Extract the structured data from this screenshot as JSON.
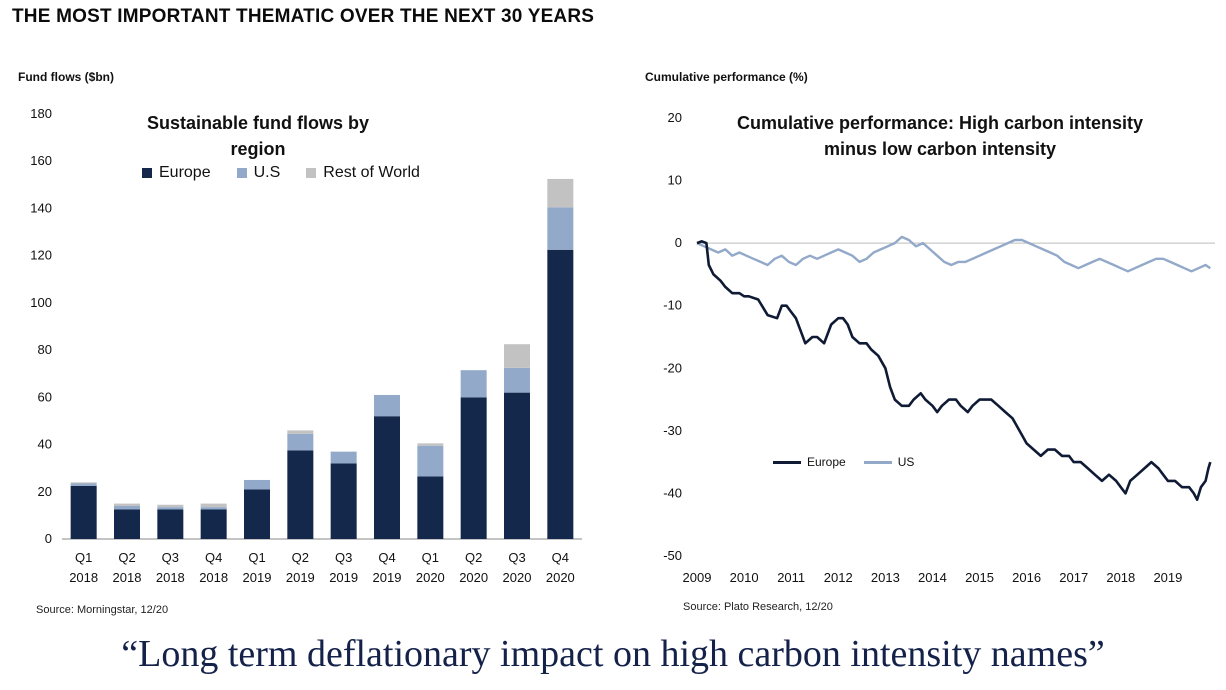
{
  "headline": "THE MOST IMPORTANT THEMATIC OVER THE NEXT 30 YEARS",
  "quote": "“Long term deflationary impact on high carbon intensity names”",
  "colors": {
    "europe": "#14284b",
    "us": "#93a9c9",
    "row": "#c2c2c2",
    "axis": "#8a8a8a"
  },
  "left": {
    "axis_caption": "Fund flows ($bn)",
    "source": "Source: Morningstar, 12/20"
  },
  "right": {
    "axis_caption": "Cumulative performance (%)",
    "source": "Source: Plato Research, 12/20"
  },
  "chart_data": [
    {
      "type": "bar",
      "stacked": true,
      "title": "Sustainable fund flows by region",
      "ylabel": "Fund flows ($bn)",
      "ylim": [
        0,
        180
      ],
      "yticks": [
        0,
        20,
        40,
        60,
        80,
        100,
        120,
        140,
        160,
        180
      ],
      "categories": [
        [
          "Q1",
          "2018"
        ],
        [
          "Q2",
          "2018"
        ],
        [
          "Q3",
          "2018"
        ],
        [
          "Q4",
          "2018"
        ],
        [
          "Q1",
          "2019"
        ],
        [
          "Q2",
          "2019"
        ],
        [
          "Q3",
          "2019"
        ],
        [
          "Q4",
          "2019"
        ],
        [
          "Q1",
          "2020"
        ],
        [
          "Q2",
          "2020"
        ],
        [
          "Q3",
          "2020"
        ],
        [
          "Q4",
          "2020"
        ]
      ],
      "legend_position": "top-left",
      "series": [
        {
          "name": "Europe",
          "values": [
            22.5,
            12.5,
            12.5,
            12.5,
            21,
            37.5,
            32,
            52,
            26.5,
            60,
            62,
            122.5
          ]
        },
        {
          "name": "U.S",
          "values": [
            1,
            1.5,
            1,
            1,
            4,
            7,
            5,
            9,
            13,
            11.5,
            10.5,
            18
          ]
        },
        {
          "name": "Rest of World",
          "values": [
            0.5,
            1,
            1,
            1.5,
            0,
            1.5,
            0,
            0,
            1,
            0,
            10,
            12
          ]
        }
      ]
    },
    {
      "type": "line",
      "title_lines": [
        "Cumulative performance: High carbon intensity",
        "minus low carbon intensity"
      ],
      "ylabel": "Cumulative performance (%)",
      "ylim": [
        -50,
        20
      ],
      "yticks": [
        20,
        10,
        0,
        -10,
        -20,
        -30,
        -40,
        -50
      ],
      "xlim": [
        2009,
        2020
      ],
      "xticks": [
        2009,
        2010,
        2011,
        2012,
        2013,
        2014,
        2015,
        2016,
        2017,
        2018,
        2019
      ],
      "legend_position": "bottom-left",
      "series": [
        {
          "name": "Europe",
          "x": [
            2009.0,
            2009.1,
            2009.2,
            2009.25,
            2009.35,
            2009.5,
            2009.6,
            2009.75,
            2009.9,
            2010.0,
            2010.1,
            2010.3,
            2010.5,
            2010.7,
            2010.8,
            2010.9,
            2011.0,
            2011.1,
            2011.2,
            2011.3,
            2011.45,
            2011.55,
            2011.7,
            2011.85,
            2012.0,
            2012.1,
            2012.2,
            2012.3,
            2012.45,
            2012.6,
            2012.7,
            2012.85,
            2013.0,
            2013.1,
            2013.2,
            2013.35,
            2013.5,
            2013.6,
            2013.75,
            2013.85,
            2014.0,
            2014.1,
            2014.2,
            2014.35,
            2014.5,
            2014.6,
            2014.75,
            2014.85,
            2015.0,
            2015.1,
            2015.25,
            2015.4,
            2015.55,
            2015.7,
            2015.85,
            2016.0,
            2016.15,
            2016.3,
            2016.45,
            2016.6,
            2016.75,
            2016.9,
            2017.0,
            2017.15,
            2017.3,
            2017.45,
            2017.6,
            2017.75,
            2017.9,
            2018.0,
            2018.1,
            2018.2,
            2018.35,
            2018.5,
            2018.65,
            2018.8,
            2018.9,
            2019.0,
            2019.15,
            2019.3,
            2019.45,
            2019.55,
            2019.62,
            2019.7,
            2019.8,
            2019.86,
            2019.9
          ],
          "y": [
            0,
            0.3,
            0,
            -3.5,
            -5,
            -6,
            -7,
            -8,
            -8,
            -8.5,
            -8.5,
            -9,
            -11.5,
            -12,
            -10,
            -10,
            -11,
            -12,
            -14,
            -16,
            -15,
            -15,
            -16,
            -13,
            -12,
            -12,
            -13,
            -15,
            -16,
            -16,
            -17,
            -18,
            -20,
            -23,
            -25,
            -26,
            -26,
            -25,
            -24,
            -25,
            -26,
            -27,
            -26,
            -25,
            -25,
            -26,
            -27,
            -26,
            -25,
            -25,
            -25,
            -26,
            -27,
            -28,
            -30,
            -32,
            -33,
            -34,
            -33,
            -33,
            -34,
            -34,
            -35,
            -35,
            -36,
            -37,
            -38,
            -37,
            -38,
            -39,
            -40,
            -38,
            -37,
            -36,
            -35,
            -36,
            -37,
            -38,
            -38,
            -39,
            -39,
            -40,
            -41,
            -39,
            -38,
            -36,
            -35
          ],
          "y_comment": "approximate"
        },
        {
          "name": "US",
          "x": [
            2009.0,
            2009.15,
            2009.3,
            2009.45,
            2009.6,
            2009.75,
            2009.9,
            2010.05,
            2010.2,
            2010.35,
            2010.5,
            2010.65,
            2010.8,
            2010.95,
            2011.1,
            2011.25,
            2011.4,
            2011.55,
            2011.7,
            2011.85,
            2012.0,
            2012.15,
            2012.3,
            2012.45,
            2012.6,
            2012.75,
            2012.9,
            2013.05,
            2013.2,
            2013.35,
            2013.5,
            2013.65,
            2013.8,
            2013.95,
            2014.1,
            2014.25,
            2014.4,
            2014.55,
            2014.7,
            2014.85,
            2015.0,
            2015.15,
            2015.3,
            2015.45,
            2015.6,
            2015.75,
            2015.9,
            2016.05,
            2016.2,
            2016.35,
            2016.5,
            2016.65,
            2016.8,
            2016.95,
            2017.1,
            2017.25,
            2017.4,
            2017.55,
            2017.7,
            2017.85,
            2018.0,
            2018.15,
            2018.3,
            2018.45,
            2018.6,
            2018.75,
            2018.9,
            2019.05,
            2019.2,
            2019.35,
            2019.5,
            2019.65,
            2019.8,
            2019.9
          ],
          "y": [
            0,
            -0.5,
            -1,
            -1.5,
            -1,
            -2,
            -1.5,
            -2,
            -2.5,
            -3,
            -3.5,
            -2.5,
            -2,
            -3,
            -3.5,
            -2.5,
            -2,
            -2.5,
            -2,
            -1.5,
            -1,
            -1.5,
            -2,
            -3,
            -2.5,
            -1.5,
            -1,
            -0.5,
            0,
            1,
            0.5,
            -0.5,
            0,
            -1,
            -2,
            -3,
            -3.5,
            -3,
            -3,
            -2.5,
            -2,
            -1.5,
            -1,
            -0.5,
            0,
            0.5,
            0.5,
            0,
            -0.5,
            -1,
            -1.5,
            -2,
            -3,
            -3.5,
            -4,
            -3.5,
            -3,
            -2.5,
            -3,
            -3.5,
            -4,
            -4.5,
            -4,
            -3.5,
            -3,
            -2.5,
            -2.5,
            -3,
            -3.5,
            -4,
            -4.5,
            -4,
            -3.5,
            -4
          ],
          "y_comment": "approximate"
        }
      ]
    }
  ]
}
